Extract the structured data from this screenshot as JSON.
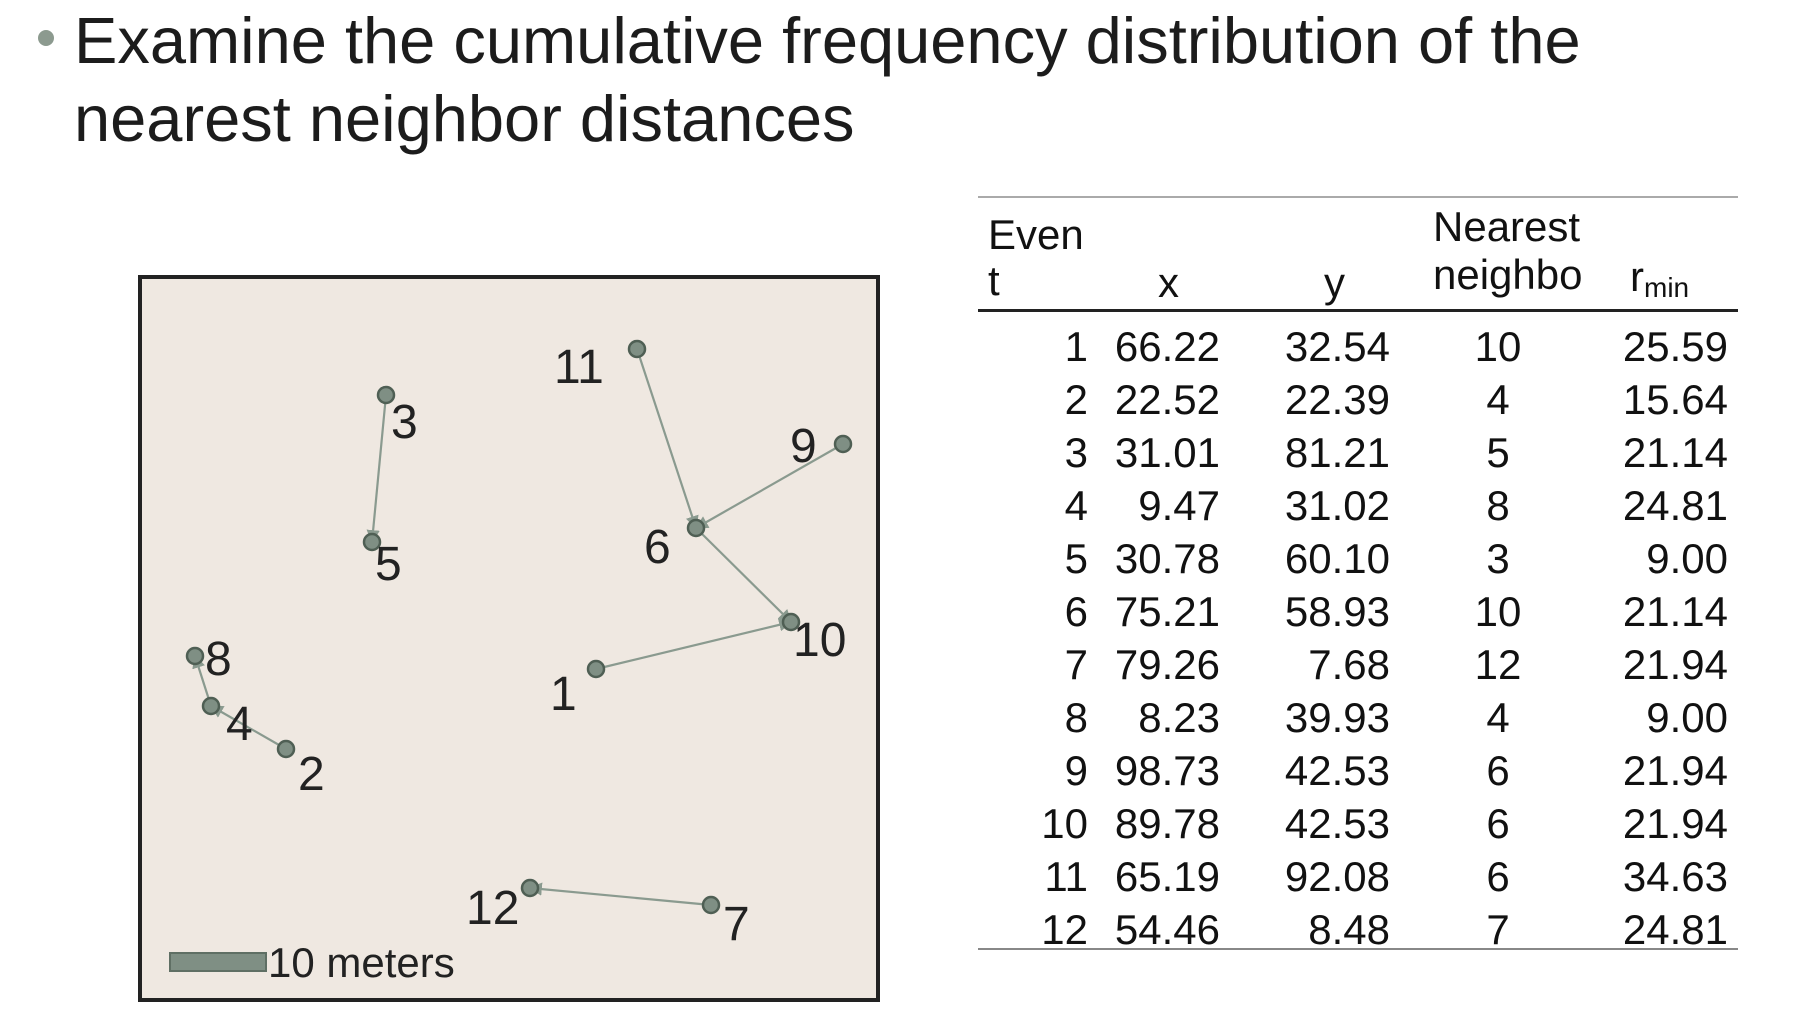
{
  "slide": {
    "bullet_text": "Examine the cumulative frequency distribution of the nearest neighbor distances"
  },
  "map": {
    "scale_label": "10 meters",
    "points": [
      {
        "label": "1"
      },
      {
        "label": "2"
      },
      {
        "label": "3"
      },
      {
        "label": "4"
      },
      {
        "label": "5"
      },
      {
        "label": "6"
      },
      {
        "label": "7"
      },
      {
        "label": "8"
      },
      {
        "label": "9"
      },
      {
        "label": "10"
      },
      {
        "label": "11"
      },
      {
        "label": "12"
      }
    ],
    "colors": {
      "background": "#efe8e1",
      "point": "#7f8f84",
      "line": "#8a9a8f",
      "frame": "#222222"
    }
  },
  "table": {
    "headers": {
      "event_line1": "Even",
      "event_line2": "t",
      "x": "x",
      "y": "y",
      "nn_line1": "Nearest",
      "nn_line2": "neighbo",
      "rmin_main": "r",
      "rmin_sub": "min"
    },
    "rows": [
      {
        "event": "1",
        "x": "66.22",
        "y": "32.54",
        "nearest": "10",
        "rmin": "25.59"
      },
      {
        "event": "2",
        "x": "22.52",
        "y": "22.39",
        "nearest": "4",
        "rmin": "15.64"
      },
      {
        "event": "3",
        "x": "31.01",
        "y": "81.21",
        "nearest": "5",
        "rmin": "21.14"
      },
      {
        "event": "4",
        "x": "9.47",
        "y": "31.02",
        "nearest": "8",
        "rmin": "24.81"
      },
      {
        "event": "5",
        "x": "30.78",
        "y": "60.10",
        "nearest": "3",
        "rmin": "9.00"
      },
      {
        "event": "6",
        "x": "75.21",
        "y": "58.93",
        "nearest": "10",
        "rmin": "21.14"
      },
      {
        "event": "7",
        "x": "79.26",
        "y": "7.68",
        "nearest": "12",
        "rmin": "21.94"
      },
      {
        "event": "8",
        "x": "8.23",
        "y": "39.93",
        "nearest": "4",
        "rmin": "9.00"
      },
      {
        "event": "9",
        "x": "98.73",
        "y": "42.53",
        "nearest": "6",
        "rmin": "21.94"
      },
      {
        "event": "10",
        "x": "89.78",
        "y": "42.53",
        "nearest": "6",
        "rmin": "21.94"
      },
      {
        "event": "11",
        "x": "65.19",
        "y": "92.08",
        "nearest": "6",
        "rmin": "34.63"
      },
      {
        "event": "12",
        "x": "54.46",
        "y": "8.48",
        "nearest": "7",
        "rmin": "24.81"
      }
    ]
  }
}
